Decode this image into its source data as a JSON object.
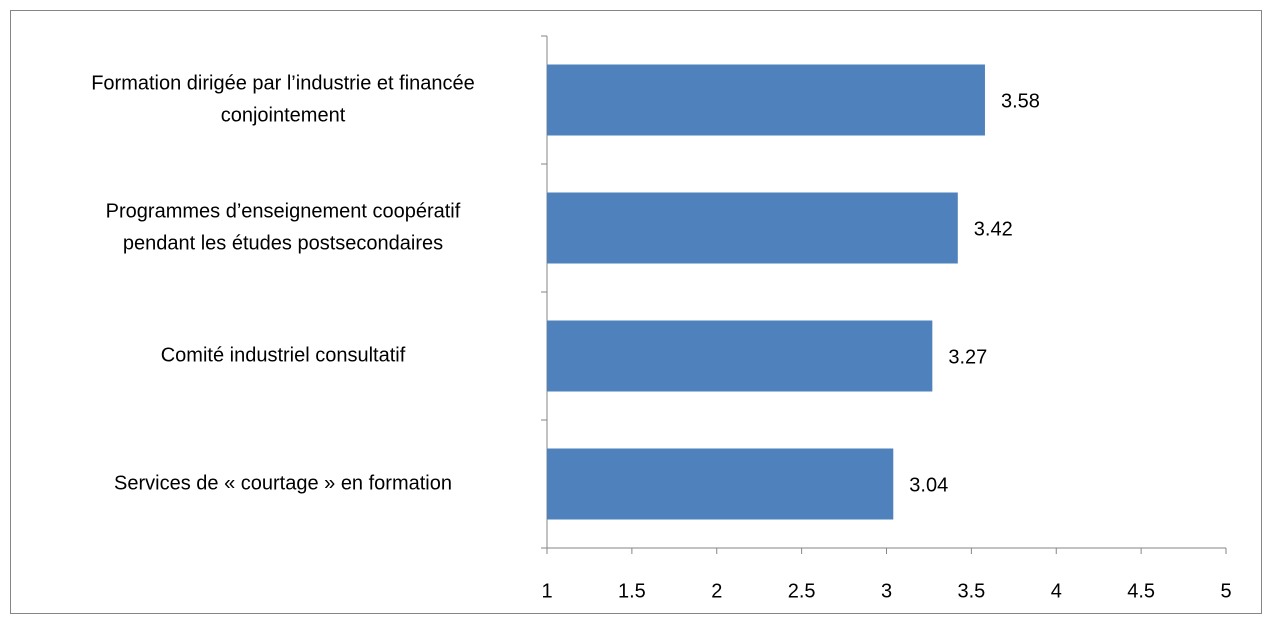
{
  "chart_data": {
    "type": "bar",
    "orientation": "horizontal",
    "categories": [
      [
        "Formation dirigée par l’industrie et financée",
        "conjointement"
      ],
      [
        "Programmes d’enseignement coopératif",
        "pendant les études postsecondaires"
      ],
      [
        "Comité industriel consultatif"
      ],
      [
        "Services de « courtage » en formation"
      ]
    ],
    "values": [
      3.58,
      3.42,
      3.27,
      3.04
    ],
    "color": "#4f81bd",
    "xlim": [
      1,
      5
    ],
    "xticks": [
      1,
      1.5,
      2,
      2.5,
      3,
      3.5,
      4,
      4.5,
      5
    ],
    "grid": false
  }
}
